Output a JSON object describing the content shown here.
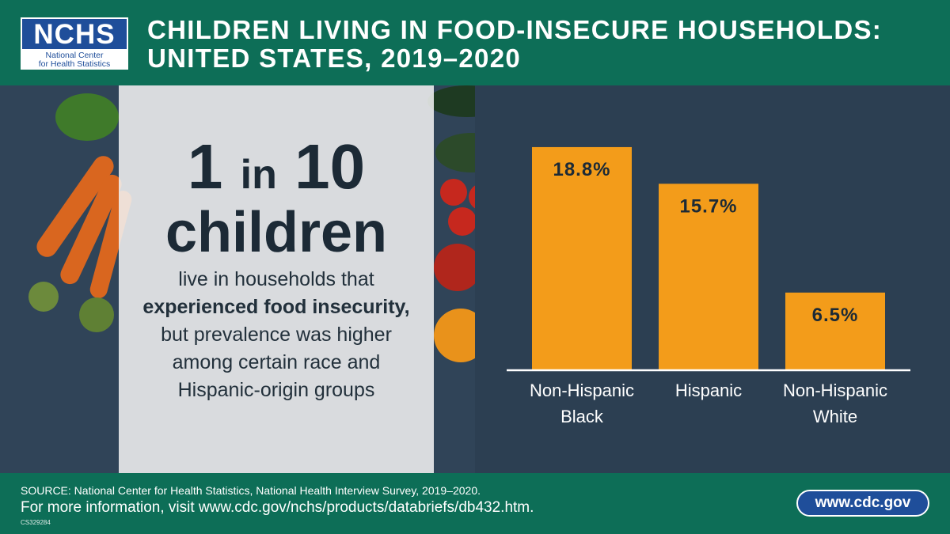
{
  "header": {
    "logo_main": "NCHS",
    "logo_sub_1": "National Center",
    "logo_sub_2": "for Health Statistics",
    "title_line1": "CHILDREN LIVING IN FOOD-INSECURE HOUSEHOLDS:",
    "title_line2": "UNITED STATES, 2019–2020"
  },
  "callout": {
    "num1": "1",
    "in": "in",
    "num2": "10",
    "children": "children",
    "text_a": "live in households that",
    "text_bold": "experienced food insecurity,",
    "text_b": "but prevalence was higher among certain race and Hispanic-origin groups"
  },
  "chart_data": {
    "type": "bar",
    "categories": [
      "Non-Hispanic Black",
      "Hispanic",
      "Non-Hispanic White"
    ],
    "category_lines": [
      [
        "Non-Hispanic",
        "Black"
      ],
      [
        "Hispanic"
      ],
      [
        "Non-Hispanic",
        "White"
      ]
    ],
    "values": [
      18.8,
      15.7,
      6.5
    ],
    "value_labels": [
      "18.8%",
      "15.7%",
      "6.5%"
    ],
    "ylim": [
      0,
      20
    ],
    "bar_color": "#f39c1a",
    "axis_color": "#ffffff",
    "title": "",
    "xlabel": "",
    "ylabel": ""
  },
  "footer": {
    "source": "SOURCE: National Center for Health Statistics, National Health Interview Survey, 2019–2020.",
    "info": "For more information, visit www.cdc.gov/nchs/products/databriefs/db432.htm.",
    "code": "CS329284",
    "cdc_link": "www.cdc.gov"
  },
  "colors": {
    "header_bg": "#0d6e57",
    "logo_blue": "#1f4e9a",
    "bar": "#f39c1a",
    "background": "#2c3f52"
  }
}
